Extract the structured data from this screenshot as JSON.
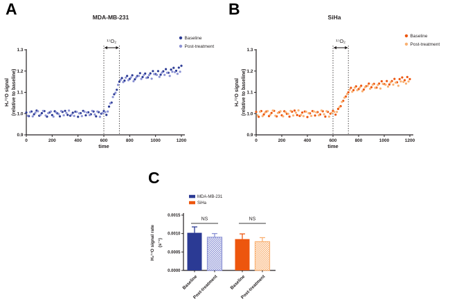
{
  "panels": {
    "a": "A",
    "b": "B",
    "c": "C"
  },
  "colors": {
    "axis": "#231F20",
    "blue_dark": "#2B3A94",
    "blue_light": "#8B92D4",
    "orange_dark": "#ED560E",
    "orange_light": "#F9B173",
    "ns_line": "#3A3A3A",
    "background": "#FFFFFF"
  },
  "chart_data": [
    {
      "id": "panel-a",
      "type": "scatter",
      "title": "MDA-MB-231",
      "xlabel": "time",
      "ylabel_lines": [
        "H₂¹⁷O signal",
        "(relative to baseline)"
      ],
      "xlim": [
        0,
        1200
      ],
      "xticks": [
        0,
        200,
        400,
        600,
        800,
        1000,
        1200
      ],
      "ylim": [
        0.9,
        1.3
      ],
      "yticks": [
        "0.9",
        "1.0",
        "1.1",
        "1.2",
        "1.3"
      ],
      "annotation": {
        "label": "¹⁷O₂",
        "x1": 600,
        "x2": 720
      },
      "legend_position": "top-right",
      "series": [
        {
          "name": "Baseline",
          "color": "#2B3A94",
          "x0": 0,
          "dx": 20,
          "y": [
            1.005,
            0.988,
            1.01,
            0.997,
            1.014,
            0.99,
            1.002,
            1.012,
            0.986,
            1.005,
            0.993,
            1.011,
            1.001,
            0.987,
            1.008,
            1.013,
            0.994,
            0.99,
            1.004,
            1.009,
            0.985,
            1.002,
            1.013,
            0.992,
            1.006,
            0.997,
            1.01,
            0.987,
            1.007,
            1.0,
            1.012,
            0.994,
            1.033,
            1.052,
            1.091,
            1.112,
            1.15,
            1.167,
            1.155,
            1.177,
            1.163,
            1.18,
            1.161,
            1.177,
            1.19,
            1.172,
            1.188,
            1.17,
            1.189,
            1.2,
            1.186,
            1.2,
            1.183,
            1.199,
            1.209,
            1.192,
            1.207,
            1.215,
            1.201,
            1.216,
            1.225
          ]
        },
        {
          "name": "Post-treatment",
          "color": "#8B92D4",
          "x0": 10,
          "dx": 20,
          "y": [
            0.99,
            1.007,
            0.987,
            1.004,
            1.011,
            0.994,
            1.013,
            0.991,
            1.002,
            1.01,
            0.986,
            1.006,
            0.998,
            1.012,
            0.992,
            1.003,
            1.014,
            0.995,
            0.989,
            1.008,
            1.001,
            0.988,
            1.009,
            1.005,
            0.993,
            1.013,
            0.996,
            1.01,
            0.985,
            1.002,
            1.007,
            1.01,
            1.048,
            1.078,
            1.098,
            1.135,
            1.159,
            1.148,
            1.169,
            1.157,
            1.17,
            1.152,
            1.17,
            1.177,
            1.163,
            1.182,
            1.168,
            1.181,
            1.164,
            1.186,
            1.182,
            1.173,
            1.193,
            1.182,
            1.192,
            1.177,
            1.197,
            1.195,
            1.187,
            1.197
          ]
        }
      ]
    },
    {
      "id": "panel-b",
      "type": "scatter",
      "title": "SiHa",
      "xlabel": "time",
      "ylabel_lines": [
        "H₂¹⁷O signal",
        "(relative to baseline)"
      ],
      "xlim": [
        0,
        1200
      ],
      "xticks": [
        0,
        200,
        400,
        600,
        800,
        1000,
        1200
      ],
      "ylim": [
        0.9,
        1.3
      ],
      "yticks": [
        "0.9",
        "1.0",
        "1.1",
        "1.2",
        "1.3"
      ],
      "annotation": {
        "label": "¹⁷O₂",
        "x1": 600,
        "x2": 720
      },
      "legend_position": "top-right",
      "series": [
        {
          "name": "Baseline",
          "color": "#ED560E",
          "x0": 0,
          "dx": 20,
          "y": [
            1.008,
            0.985,
            1.012,
            0.996,
            1.01,
            0.988,
            1.003,
            1.013,
            0.987,
            1.006,
            0.992,
            1.011,
            0.999,
            0.986,
            1.009,
            1.014,
            0.993,
            0.989,
            1.005,
            1.01,
            0.984,
            1.001,
            1.012,
            0.991,
            1.007,
            0.996,
            1.011,
            0.986,
            1.008,
            1.0,
            1.013,
            0.995,
            1.022,
            1.035,
            1.06,
            1.08,
            1.1,
            1.121,
            1.11,
            1.128,
            1.115,
            1.131,
            1.113,
            1.129,
            1.141,
            1.124,
            1.14,
            1.122,
            1.141,
            1.152,
            1.139,
            1.153,
            1.137,
            1.153,
            1.163,
            1.147,
            1.162,
            1.17,
            1.157,
            1.172,
            1.162
          ]
        },
        {
          "name": "Post-treatment",
          "color": "#F9B173",
          "x0": 10,
          "dx": 20,
          "y": [
            0.992,
            1.009,
            0.988,
            1.005,
            1.012,
            0.995,
            1.014,
            0.99,
            1.003,
            1.011,
            0.987,
            1.007,
            0.999,
            1.013,
            0.991,
            1.004,
            1.015,
            0.994,
            0.988,
            1.009,
            1.002,
            0.989,
            1.01,
            1.006,
            0.992,
            1.014,
            0.997,
            1.011,
            0.986,
            1.003,
            1.008,
            1.008,
            1.03,
            1.055,
            1.075,
            1.092,
            1.112,
            1.103,
            1.122,
            1.11,
            1.123,
            1.105,
            1.124,
            1.131,
            1.117,
            1.136,
            1.121,
            1.135,
            1.118,
            1.14,
            1.136,
            1.127,
            1.147,
            1.136,
            1.146,
            1.131,
            1.151,
            1.149,
            1.141,
            1.151
          ]
        }
      ]
    },
    {
      "id": "panel-c",
      "type": "bar",
      "ylabel_lines": [
        "H₂¹⁷O signal rate",
        "(s⁻¹)"
      ],
      "ylim": [
        0,
        0.0015
      ],
      "yticks": [
        "0.0000",
        "0.0005",
        "0.0010",
        "0.0015"
      ],
      "legend": [
        {
          "label": "MDA-MB-231",
          "color": "#2B3A94"
        },
        {
          "label": "SiHa",
          "color": "#ED560E"
        }
      ],
      "bars": [
        {
          "label": "Baseline",
          "group": "MDA-MB-231",
          "value": 0.00102,
          "error": 0.00016,
          "color": "#2B3A94",
          "hatched": false
        },
        {
          "label": "Post-treatment",
          "group": "MDA-MB-231",
          "value": 0.0009,
          "error": 0.0001,
          "color": "#8B92D4",
          "hatched": true
        },
        {
          "label": "Baseline",
          "group": "SiHa",
          "value": 0.00085,
          "error": 0.00014,
          "color": "#ED560E",
          "hatched": false
        },
        {
          "label": "Post-treatment",
          "group": "SiHa",
          "value": 0.00078,
          "error": 0.00011,
          "color": "#F9B173",
          "hatched": true
        }
      ],
      "comparisons": [
        {
          "label": "NS",
          "between": [
            0,
            1
          ]
        },
        {
          "label": "NS",
          "between": [
            2,
            3
          ]
        }
      ]
    }
  ]
}
